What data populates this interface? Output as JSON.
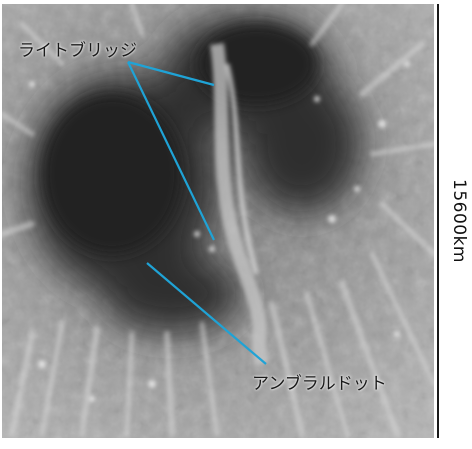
{
  "annotations": {
    "light_bridge": "ライトブリッジ",
    "umbral_dots": "アンブラルドット"
  },
  "scale": {
    "label": "15600km"
  },
  "colors": {
    "pointer_line": "#1fa3d6",
    "scale_bar": "#1a1a1a"
  }
}
